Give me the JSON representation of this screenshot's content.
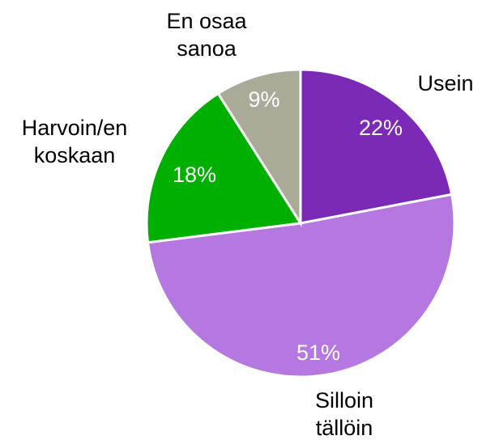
{
  "chart_data": {
    "type": "pie",
    "categories": [
      "Usein",
      "Silloin\ntällöin",
      "Harvoin/en\nkoskaan",
      "En osaa\nsanoa"
    ],
    "values": [
      22,
      51,
      18,
      9
    ],
    "value_labels": [
      "22%",
      "51%",
      "18%",
      "9%"
    ],
    "colors": [
      "#7b2ab8",
      "#b577e0",
      "#00b000",
      "#aaaa99"
    ]
  }
}
